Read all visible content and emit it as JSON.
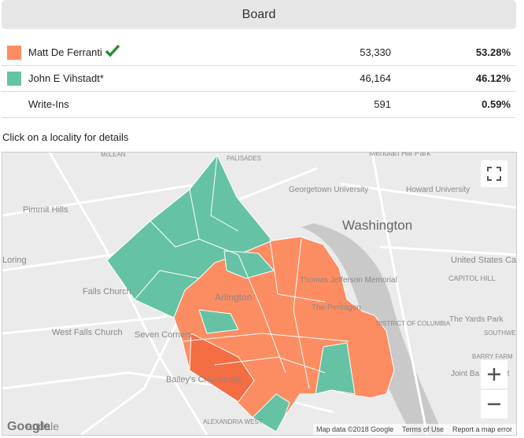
{
  "header": {
    "title": "Board"
  },
  "table": {
    "rows": [
      {
        "name": "Matt De Ferranti",
        "color": "#fc8d62",
        "votes": "53,330",
        "percent": "53.28%",
        "winner": true
      },
      {
        "name": "John E Vihstadt*",
        "color": "#66c2a5",
        "votes": "46,164",
        "percent": "46.12%",
        "winner": false
      },
      {
        "name": "Write-Ins",
        "color": null,
        "votes": "591",
        "percent": "0.59%",
        "winner": false
      }
    ]
  },
  "instruction": "Click on a locality for details",
  "map": {
    "labels": [
      "McLEAN",
      "PALISADES",
      "Meridian Hill Park",
      "Georgetown University",
      "Howard University",
      "Pimmit Hills",
      "Washington",
      "Loring",
      "United States Ca",
      "CAPITOL HILL",
      "Falls Church",
      "Thomas Jefferson Memorial",
      "Arlington",
      "The Pentagon",
      "DISTRICT OF COLUMBIA",
      "The Yards Park",
      "West Falls Church",
      "Seven Corners",
      "SOUTHWEST",
      "BARRY FARM",
      "Bailey's Crossroads",
      "Joint Ba Anacost",
      "ALEXANDRIA WEST",
      "andale"
    ],
    "footer": {
      "logo": "Google",
      "data": "Map data ©2018 Google",
      "terms": "Terms of Use",
      "report": "Report a map error"
    }
  }
}
